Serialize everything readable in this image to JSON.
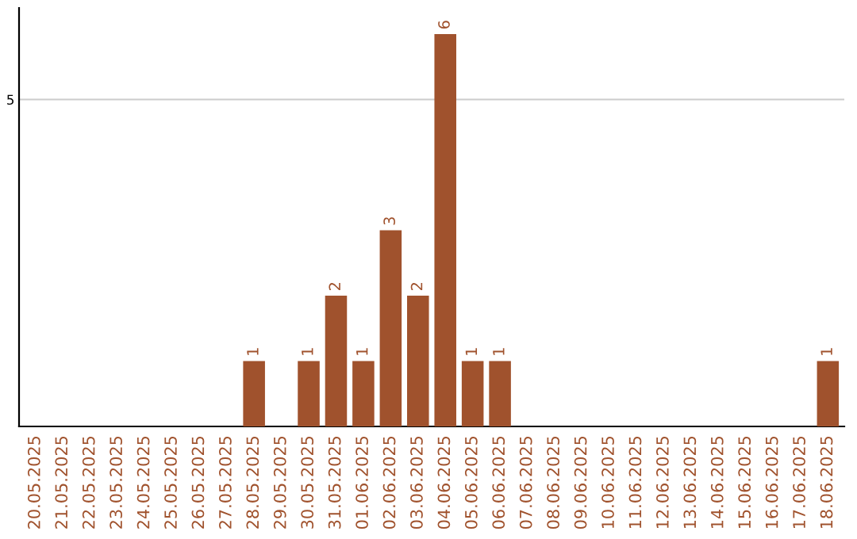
{
  "chart_data": {
    "type": "bar",
    "categories": [
      "20.05.2025",
      "21.05.2025",
      "22.05.2025",
      "23.05.2025",
      "24.05.2025",
      "25.05.2025",
      "26.05.2025",
      "27.05.2025",
      "28.05.2025",
      "29.05.2025",
      "30.05.2025",
      "31.05.2025",
      "01.06.2025",
      "02.06.2025",
      "03.06.2025",
      "04.06.2025",
      "05.06.2025",
      "06.06.2025",
      "07.06.2025",
      "08.06.2025",
      "09.06.2025",
      "10.06.2025",
      "11.06.2025",
      "12.06.2025",
      "13.06.2025",
      "14.06.2025",
      "15.06.2025",
      "16.06.2025",
      "17.06.2025",
      "18.06.2025"
    ],
    "values": [
      0,
      0,
      0,
      0,
      0,
      0,
      0,
      0,
      1,
      0,
      1,
      2,
      1,
      3,
      2,
      6,
      1,
      1,
      0,
      0,
      0,
      0,
      0,
      0,
      0,
      0,
      0,
      0,
      0,
      1
    ],
    "value_labels": [
      null,
      null,
      null,
      null,
      null,
      null,
      null,
      null,
      "1",
      null,
      "1",
      "2",
      "1",
      "3",
      "2",
      "6",
      "1",
      "1",
      null,
      null,
      null,
      null,
      null,
      null,
      null,
      null,
      null,
      null,
      null,
      "1"
    ],
    "color": "#a0522d",
    "ylim": [
      0,
      6.4
    ],
    "yticks": [
      5
    ],
    "grid": "y"
  }
}
